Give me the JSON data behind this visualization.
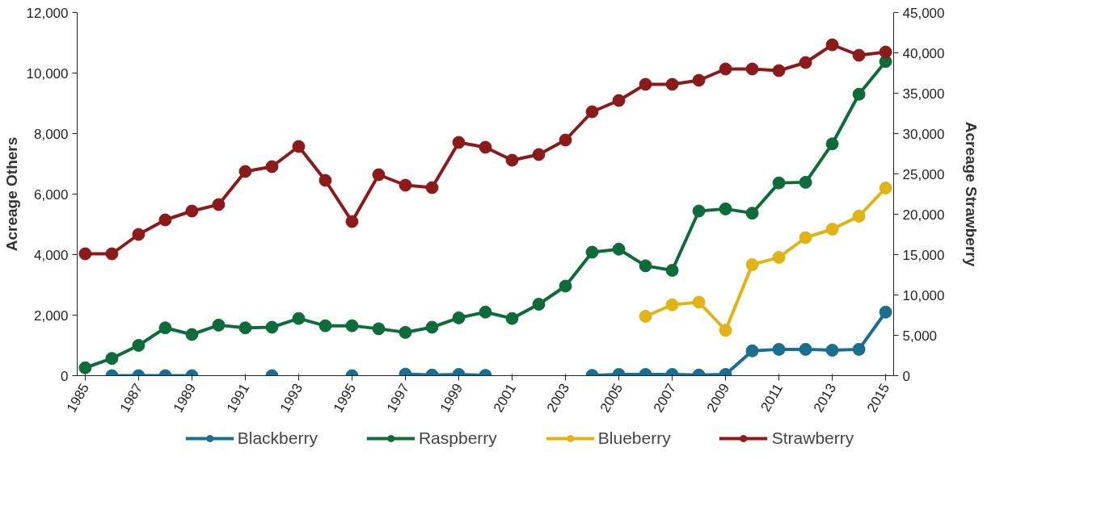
{
  "chart_data": {
    "type": "line",
    "xlabel": null,
    "ylabel": "Acreage Others",
    "y2label": "Acreage Strawberry",
    "x": [
      1985,
      1986,
      1987,
      1988,
      1989,
      1990,
      1991,
      1992,
      1993,
      1994,
      1995,
      1996,
      1997,
      1998,
      1999,
      2000,
      2001,
      2002,
      2003,
      2004,
      2005,
      2006,
      2007,
      2008,
      2009,
      2010,
      2011,
      2012,
      2013,
      2014,
      2015
    ],
    "series": [
      {
        "name": "Blackberry",
        "color": "#1a6e8e",
        "values": [
          null,
          0,
          0,
          0,
          0,
          null,
          null,
          0,
          null,
          null,
          0,
          null,
          50,
          20,
          40,
          10,
          null,
          null,
          null,
          10,
          40,
          40,
          40,
          20,
          40,
          820,
          870,
          870,
          840,
          870,
          2100
        ]
      },
      {
        "name": "Raspberry",
        "color": "#0e6b3a",
        "values": [
          260,
          570,
          1000,
          1580,
          1360,
          1670,
          1580,
          1600,
          1890,
          1650,
          1650,
          1550,
          1430,
          1600,
          1910,
          2100,
          1890,
          2360,
          2960,
          4080,
          4180,
          3630,
          3480,
          5440,
          5510,
          5370,
          6370,
          6390,
          7660,
          9300,
          10380
        ]
      },
      {
        "name": "Blueberry",
        "color": "#e0b417",
        "values": [
          null,
          null,
          null,
          null,
          null,
          null,
          null,
          null,
          null,
          null,
          null,
          null,
          null,
          null,
          null,
          null,
          null,
          null,
          null,
          null,
          null,
          1960,
          2340,
          2430,
          1500,
          3670,
          3910,
          4560,
          4840,
          5270,
          6200
        ]
      },
      {
        "name": "Strawberry",
        "color": "#8b1a1a",
        "axis": "y2",
        "values": [
          15100,
          15100,
          17500,
          19300,
          20400,
          21200,
          25300,
          25900,
          28400,
          24200,
          19100,
          24900,
          23600,
          23300,
          28900,
          28300,
          26700,
          27400,
          29200,
          32700,
          34100,
          36100,
          36100,
          36600,
          38000,
          38000,
          37800,
          38800,
          41000,
          39700,
          40100
        ]
      }
    ],
    "xlim": [
      1984.7,
      2015.3
    ],
    "xticks": [
      1985,
      1987,
      1989,
      1991,
      1993,
      1995,
      1997,
      1999,
      2001,
      2003,
      2005,
      2007,
      2009,
      2011,
      2013,
      2015
    ],
    "ylim": [
      0,
      12000
    ],
    "yticks": [
      {
        "value": 0,
        "label": "0"
      },
      {
        "value": 2000,
        "label": "2,000"
      },
      {
        "value": 4000,
        "label": "4,000"
      },
      {
        "value": 6000,
        "label": "6,000"
      },
      {
        "value": 8000,
        "label": "8,000"
      },
      {
        "value": 10000,
        "label": "10,000"
      },
      {
        "value": 12000,
        "label": "12,000"
      }
    ],
    "y2lim": [
      0,
      45000
    ],
    "y2ticks": [
      {
        "value": 0,
        "label": "0"
      },
      {
        "value": 5000,
        "label": "5,000"
      },
      {
        "value": 10000,
        "label": "10,000"
      },
      {
        "value": 15000,
        "label": "15,000"
      },
      {
        "value": 20000,
        "label": "20,000"
      },
      {
        "value": 25000,
        "label": "25,000"
      },
      {
        "value": 30000,
        "label": "30,000"
      },
      {
        "value": 35000,
        "label": "35,000"
      },
      {
        "value": 40000,
        "label": "40,000"
      },
      {
        "value": 45000,
        "label": "45,000"
      }
    ],
    "grid": false,
    "legend": "bottom",
    "marker": "circle",
    "line_style": "solid"
  }
}
